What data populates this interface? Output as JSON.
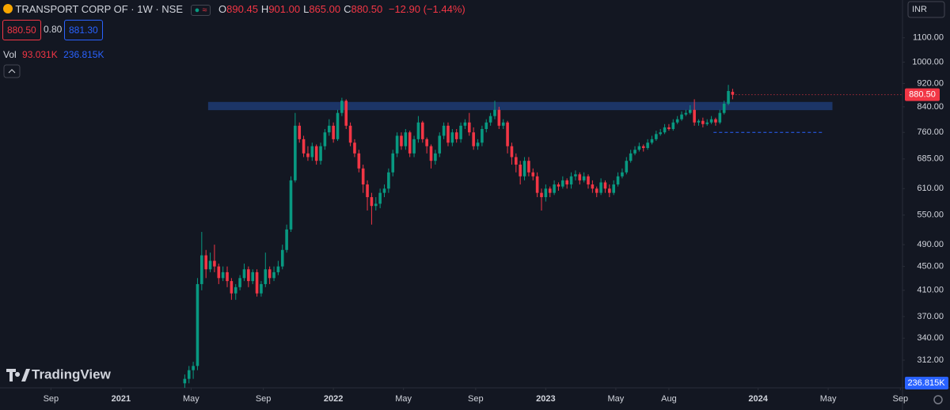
{
  "header": {
    "symbol": "TRANSPORT CORP OF · 1W · NSE",
    "ohlc": [
      {
        "key": "O",
        "value": "890.45"
      },
      {
        "key": "H",
        "value": "901.00"
      },
      {
        "key": "L",
        "value": "865.00"
      },
      {
        "key": "C",
        "value": "880.50"
      }
    ],
    "change": "−12.90 (−1.44%)",
    "bid": "880.50",
    "spread": "0.80",
    "ask": "881.30",
    "vol_label": "Vol",
    "vol": "93.031K",
    "vol_ma": "236.815K",
    "currency": "INR",
    "logo": "TradingView"
  },
  "chart_data": {
    "type": "candlestick",
    "log_scale": true,
    "grid": false,
    "up_color": "#089981",
    "down_color": "#f23645",
    "x": [
      2021.3,
      2021.32,
      2021.34,
      2021.36,
      2021.38,
      2021.4,
      2021.42,
      2021.44,
      2021.46,
      2021.48,
      2021.5,
      2021.52,
      2021.54,
      2021.56,
      2021.58,
      2021.6,
      2021.62,
      2021.64,
      2021.66,
      2021.68,
      2021.7,
      2021.72,
      2021.74,
      2021.76,
      2021.78,
      2021.8,
      2021.82,
      2021.84,
      2021.86,
      2021.88,
      2021.9,
      2021.92,
      2021.94,
      2021.96,
      2021.98,
      2022.0,
      2022.02,
      2022.04,
      2022.06,
      2022.08,
      2022.1,
      2022.12,
      2022.14,
      2022.16,
      2022.18,
      2022.2,
      2022.22,
      2022.24,
      2022.26,
      2022.28,
      2022.3,
      2022.32,
      2022.34,
      2022.36,
      2022.38,
      2022.4,
      2022.42,
      2022.44,
      2022.46,
      2022.48,
      2022.5,
      2022.52,
      2022.54,
      2022.56,
      2022.58,
      2022.6,
      2022.62,
      2022.64,
      2022.66,
      2022.68,
      2022.7,
      2022.72,
      2022.74,
      2022.76,
      2022.78,
      2022.8,
      2022.82,
      2022.84,
      2022.86,
      2022.88,
      2022.9,
      2022.92,
      2022.94,
      2022.96,
      2022.98,
      2023.0,
      2023.02,
      2023.04,
      2023.06,
      2023.08,
      2023.1,
      2023.12,
      2023.14,
      2023.16,
      2023.18,
      2023.2,
      2023.22,
      2023.24,
      2023.26,
      2023.28,
      2023.3,
      2023.32,
      2023.34,
      2023.36,
      2023.38,
      2023.4,
      2023.42,
      2023.44,
      2023.46,
      2023.48,
      2023.5,
      2023.52,
      2023.54,
      2023.56,
      2023.58,
      2023.6,
      2023.62,
      2023.64,
      2023.66,
      2023.68,
      2023.7,
      2023.72,
      2023.74,
      2023.76,
      2023.78,
      2023.8,
      2023.82,
      2023.84,
      2023.86,
      2023.88
    ],
    "open": [
      285,
      290,
      300,
      305,
      420,
      470,
      445,
      460,
      450,
      430,
      440,
      425,
      405,
      415,
      430,
      445,
      425,
      440,
      405,
      420,
      445,
      430,
      440,
      450,
      480,
      520,
      630,
      780,
      740,
      700,
      690,
      720,
      680,
      720,
      760,
      780,
      740,
      820,
      860,
      780,
      730,
      700,
      660,
      620,
      590,
      570,
      575,
      600,
      610,
      650,
      700,
      750,
      720,
      760,
      700,
      740,
      790,
      740,
      720,
      680,
      700,
      750,
      780,
      730,
      760,
      740,
      780,
      790,
      760,
      720,
      730,
      770,
      790,
      810,
      830,
      780,
      790,
      720,
      690,
      670,
      640,
      680,
      650,
      640,
      600,
      590,
      610,
      600,
      620,
      615,
      630,
      620,
      640,
      645,
      630,
      640,
      620,
      610,
      600,
      625,
      610,
      600,
      620,
      640,
      650,
      680,
      700,
      710,
      720,
      715,
      730,
      740,
      755,
      760,
      775,
      770,
      790,
      800,
      815,
      820,
      830,
      790,
      795,
      785,
      790,
      800,
      790,
      820,
      850,
      890.45
    ],
    "high": [
      295,
      305,
      310,
      430,
      515,
      480,
      475,
      490,
      455,
      450,
      450,
      430,
      420,
      435,
      455,
      450,
      445,
      445,
      425,
      475,
      450,
      450,
      460,
      490,
      530,
      640,
      820,
      790,
      750,
      720,
      730,
      725,
      730,
      770,
      800,
      790,
      830,
      870,
      865,
      790,
      740,
      710,
      670,
      630,
      600,
      590,
      610,
      620,
      660,
      710,
      760,
      760,
      770,
      765,
      750,
      810,
      795,
      745,
      725,
      710,
      760,
      790,
      790,
      770,
      770,
      790,
      800,
      820,
      775,
      740,
      780,
      800,
      820,
      860,
      840,
      800,
      795,
      730,
      700,
      680,
      690,
      690,
      660,
      650,
      610,
      620,
      615,
      630,
      625,
      640,
      635,
      650,
      655,
      650,
      650,
      645,
      630,
      615,
      635,
      630,
      620,
      630,
      650,
      660,
      690,
      710,
      720,
      730,
      725,
      740,
      750,
      765,
      770,
      785,
      785,
      800,
      810,
      825,
      830,
      845,
      865,
      800,
      805,
      800,
      810,
      805,
      830,
      860,
      915,
      901
    ],
    "low": [
      280,
      285,
      290,
      300,
      410,
      430,
      440,
      440,
      420,
      425,
      415,
      395,
      395,
      410,
      425,
      415,
      420,
      400,
      400,
      415,
      420,
      425,
      435,
      445,
      475,
      515,
      625,
      730,
      690,
      680,
      680,
      670,
      670,
      710,
      750,
      730,
      735,
      810,
      770,
      720,
      690,
      650,
      600,
      560,
      530,
      560,
      565,
      590,
      600,
      640,
      690,
      710,
      710,
      690,
      690,
      730,
      730,
      700,
      660,
      670,
      690,
      740,
      720,
      720,
      730,
      730,
      770,
      750,
      710,
      710,
      720,
      760,
      780,
      800,
      770,
      770,
      700,
      670,
      650,
      620,
      630,
      640,
      630,
      590,
      560,
      580,
      590,
      595,
      605,
      610,
      610,
      610,
      630,
      620,
      625,
      610,
      600,
      590,
      595,
      600,
      590,
      595,
      615,
      635,
      645,
      675,
      695,
      705,
      705,
      710,
      725,
      735,
      750,
      755,
      765,
      765,
      785,
      795,
      810,
      815,
      780,
      780,
      775,
      780,
      785,
      780,
      785,
      815,
      845,
      865
    ],
    "close": [
      290,
      300,
      305,
      420,
      470,
      445,
      460,
      450,
      430,
      440,
      425,
      405,
      415,
      430,
      445,
      425,
      440,
      405,
      420,
      445,
      430,
      440,
      450,
      480,
      520,
      630,
      780,
      740,
      700,
      690,
      720,
      680,
      720,
      760,
      780,
      740,
      820,
      860,
      780,
      730,
      700,
      660,
      620,
      590,
      570,
      575,
      600,
      610,
      650,
      700,
      750,
      720,
      760,
      700,
      740,
      790,
      740,
      720,
      680,
      700,
      750,
      780,
      730,
      760,
      740,
      780,
      790,
      760,
      720,
      730,
      770,
      790,
      810,
      830,
      780,
      790,
      720,
      690,
      670,
      640,
      680,
      650,
      640,
      600,
      590,
      610,
      600,
      620,
      615,
      630,
      620,
      640,
      645,
      630,
      640,
      620,
      610,
      600,
      625,
      610,
      600,
      620,
      640,
      650,
      680,
      700,
      710,
      720,
      715,
      730,
      740,
      755,
      760,
      775,
      770,
      790,
      800,
      815,
      820,
      830,
      790,
      795,
      785,
      790,
      800,
      790,
      820,
      850,
      893.4,
      880.5
    ],
    "xlim": [
      2020.43,
      2024.68
    ],
    "xticks": [
      {
        "value": 2020.67,
        "label": "Sep"
      },
      2021,
      {
        "value": 2021.33,
        "label": "May"
      },
      {
        "value": 2021.67,
        "label": "Sep"
      },
      2022,
      {
        "value": 2022.33,
        "label": "May"
      },
      {
        "value": 2022.67,
        "label": "Sep"
      },
      2023,
      {
        "value": 2023.33,
        "label": "May"
      },
      {
        "value": 2023.58,
        "label": "Aug"
      },
      2024,
      {
        "value": 2024.33,
        "label": "May"
      },
      {
        "value": 2024.67,
        "label": "Sep"
      }
    ],
    "ylim": [
      280,
      1275
    ],
    "yticks": [
      {
        "value": 312,
        "label": "312.00"
      },
      {
        "value": 340,
        "label": "340.00"
      },
      {
        "value": 370,
        "label": "370.00"
      },
      {
        "value": 410,
        "label": "410.00"
      },
      {
        "value": 450,
        "label": "450.00"
      },
      {
        "value": 490,
        "label": "490.00"
      },
      {
        "value": 550,
        "label": "550.00"
      },
      {
        "value": 610,
        "label": "610.00"
      },
      {
        "value": 685,
        "label": "685.00"
      },
      {
        "value": 760,
        "label": "760.00"
      },
      {
        "value": 840,
        "label": "840.00"
      },
      {
        "value": 920,
        "label": "920.00"
      },
      {
        "value": 1000,
        "label": "1000.00"
      },
      {
        "value": 1100,
        "label": "1100.00"
      }
    ],
    "last_price": {
      "value": 880.5,
      "label": "880.50"
    },
    "volume_ma_label": "236.815K",
    "zone": {
      "x": [
        2021.41,
        2024.35
      ],
      "y": [
        829,
        856
      ],
      "color": "#1f3b73"
    },
    "level": {
      "x": [
        2023.79,
        2024.31
      ],
      "y": 760,
      "color": "#2962ff"
    }
  }
}
